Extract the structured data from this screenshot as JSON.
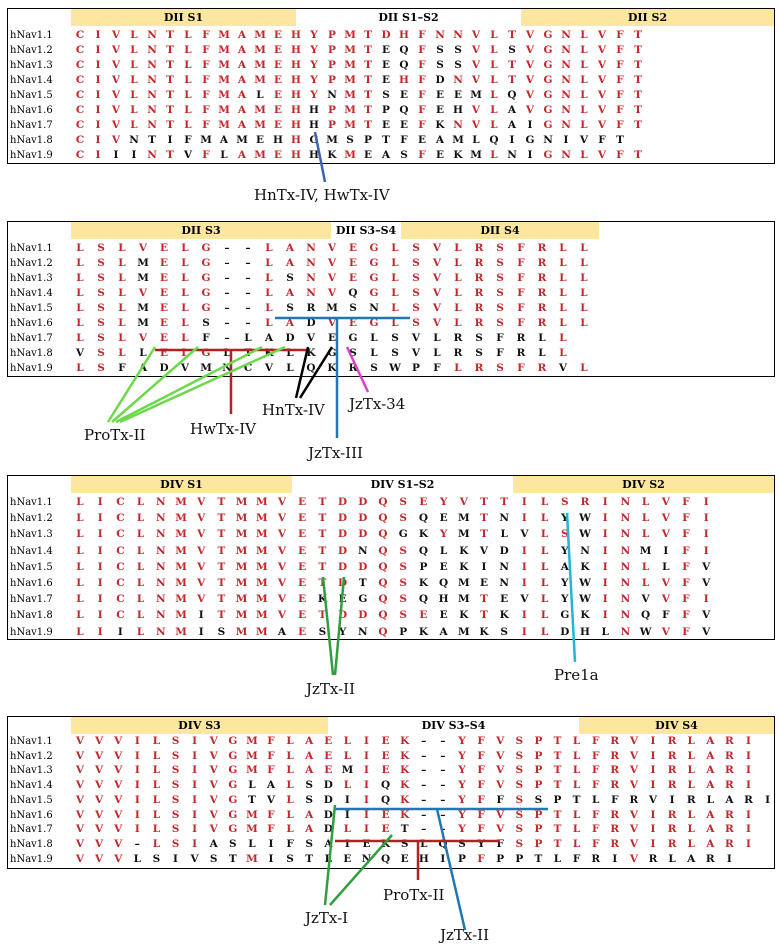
{
  "colors": {
    "conserved": "#c0282c",
    "variable": "#111111",
    "header": "#fce6a0",
    "ProTx-II": "#6cd94a",
    "HwTx-IV": "#b22222",
    "HnTx-IV": "#000000",
    "JzTx-34": "#e040c8",
    "JzTx-III": "#1e78b4",
    "HnTx-IV, HwTx-IV": "#3b64b0",
    "JzTx-II": "#1e78b4",
    "Pre1a": "#22b5d4",
    "JzTx-I": "#2e9e3e"
  },
  "panels": [
    {
      "id": "p1",
      "headers": [
        {
          "label": "DII S1",
          "fill": true,
          "span": [
            0,
            12
          ]
        },
        {
          "label": "DII S1–S2",
          "fill": false,
          "span": [
            12,
            25
          ]
        },
        {
          "label": "DII S2",
          "fill": true,
          "span": [
            25,
            38
          ]
        }
      ],
      "rows": [
        {
          "name": "hNav1.1",
          "seq": "CIVLNTLFMAMEHYPMTDHFNNVLTVGNLVFT"
        },
        {
          "name": "hNav1.2",
          "seq": "CIVLNTLFMAMEHYPMTEQFSSVLSVGNLVFT"
        },
        {
          "name": "hNav1.3",
          "seq": "CIVLNTLFMAMEHYPMTEQFSSVLTVGNLVFT"
        },
        {
          "name": "hNav1.4",
          "seq": "CIVLNTLFMAMEHYPMTEHFDNVLTVGNLVFT"
        },
        {
          "name": "hNav1.5",
          "seq": "CIVLNTLFMALEHYNMTSEFEEMLQVGNLVFT"
        },
        {
          "name": "hNav1.6",
          "seq": "CIVLNTLFMAMEHHPMTPQFEHVLAVGNLVFT"
        },
        {
          "name": "hNav1.7",
          "seq": "CIVLNTLFMAMEHHPMTEEFKNVLAIGNLVFT"
        },
        {
          "name": "hNav1.8",
          "seq": "CIVNTIFMAMEHHGMSPTFEAMLQIGNIVFT"
        },
        {
          "name": "hNav1.9",
          "seq": "CIIINTVFLAMEHHKMEASFEKMLNIGNLVFT"
        }
      ],
      "labels": [
        {
          "text": "HnTx-IV, HwTx-IV",
          "key": "HnTx-IV, HwTx-IV"
        }
      ]
    },
    {
      "id": "p2",
      "headers": [
        {
          "label": "DII S3",
          "fill": true,
          "span": [
            0,
            11
          ]
        },
        {
          "label": "DII S3–S4",
          "fill": false,
          "span": [
            11,
            15
          ]
        },
        {
          "label": "DII S4",
          "fill": true,
          "span": [
            15,
            25
          ]
        }
      ],
      "rows": [
        {
          "name": "hNav1.1",
          "seq": "LSLVELG--LANVEGLSVLRSFRLL"
        },
        {
          "name": "hNav1.2",
          "seq": "LSLMELG--LANVEGLSVLRSFRLL"
        },
        {
          "name": "hNav1.3",
          "seq": "LSLMELG--LSNVEGLSVLRSFRLL"
        },
        {
          "name": "hNav1.4",
          "seq": "LSLVELG--LANVQGLSVLRSFRLL"
        },
        {
          "name": "hNav1.5",
          "seq": "LSLMELG--LSRMSNLSVLRSFRLL"
        },
        {
          "name": "hNav1.6",
          "seq": "LSLMELS--LADVEGLSVLRSFRLL"
        },
        {
          "name": "hNav1.7",
          "seq": "LSLVELF-LADVEGLSVLRSFRLL"
        },
        {
          "name": "hNav1.8",
          "seq": "VSLLELGLTKLKGSLSVLRSFRLL"
        },
        {
          "name": "hNav1.9",
          "seq": "LSFADVMNCVLQKRSWPFLRSFRVL"
        }
      ],
      "labels": [
        {
          "text": "ProTx-II"
        },
        {
          "text": "HwTx-IV"
        },
        {
          "text": "HnTx-IV"
        },
        {
          "text": "JzTx-34"
        },
        {
          "text": "JzTx-III"
        }
      ]
    },
    {
      "id": "p3",
      "headers": [
        {
          "label": "DIV S1",
          "fill": true,
          "span": [
            0,
            12
          ]
        },
        {
          "label": "DIV S1–S2",
          "fill": false,
          "span": [
            12,
            24
          ]
        },
        {
          "label": "DIV S2",
          "fill": true,
          "span": [
            24,
            35
          ]
        }
      ],
      "rows": [
        {
          "name": "hNav1.1",
          "seq": "LICLNMVTMMVETDDQSEYVTTILSRINLVFI"
        },
        {
          "name": "hNav1.2",
          "seq": "LICLNMVTMMVETDDQSQEMTNILYWINLVFI"
        },
        {
          "name": "hNav1.3",
          "seq": "LICLNMVTMMVETDDQGKYMTLVLSWINLVFI"
        },
        {
          "name": "hNav1.4",
          "seq": "LICLNMVTMMVETDNQSQLKVDILYNINMIFI"
        },
        {
          "name": "hNav1.5",
          "seq": "LICLNMVTMMVETDDQSPEKINILAKINLLFV"
        },
        {
          "name": "hNav1.6",
          "seq": "LICLNMVTMMVETDTQSKQMENILYWINLVFV"
        },
        {
          "name": "hNav1.7",
          "seq": "LICLNMVTMMVEKEGQSQHMTEVLYWINVVFI"
        },
        {
          "name": "hNav1.8",
          "seq": "LICLNMITMMVETDDQSEEKTKILGKINQFFV"
        },
        {
          "name": "hNav1.9",
          "seq": "LIILNMISMMAESYNQPKAMKSILDHLNWVFV"
        }
      ],
      "labels": [
        {
          "text": "JzTx-II"
        },
        {
          "text": "Pre1a"
        }
      ]
    },
    {
      "id": "p4",
      "headers": [
        {
          "label": "DIV S3",
          "fill": true,
          "span": [
            0,
            14
          ]
        },
        {
          "label": "DIV S3–S4",
          "fill": false,
          "span": [
            14,
            26
          ]
        },
        {
          "label": "DIV S4",
          "fill": true,
          "span": [
            26,
            36
          ]
        }
      ],
      "rows": [
        {
          "name": "hNav1.1",
          "seq": "VVVILSIVGMFLAELIEK--YFVSPTLFRVIRLARI"
        },
        {
          "name": "hNav1.2",
          "seq": "VVVILSIVGMFLAELIEK--YFVSPTLFRVIRLARI"
        },
        {
          "name": "hNav1.3",
          "seq": "VVVILSIVGMFLAEMIEK--YFVSPTLFRVIRLARI"
        },
        {
          "name": "hNav1.4",
          "seq": "VVVILSIVGLALSDLIQK--YFVSPTLFRVIRLARI"
        },
        {
          "name": "hNav1.5",
          "seq": "VVVILSIVGTVLSDIIQK--YFFSSPTLFRVIRLARI"
        },
        {
          "name": "hNav1.6",
          "seq": "VVVILSIVGMFLADIIEK--YFVSPTLFRVIRLARI"
        },
        {
          "name": "hNav1.7",
          "seq": "VVVILSIVGMFLADLIET--YFVSPTLFRVIRLARI"
        },
        {
          "name": "hNav1.8",
          "seq": "VVV-LSIASLIFSAIEKSLQSYFSPTLFRVIRLARI"
        },
        {
          "name": "hNav1.9",
          "seq": "VVVLSIVSTMISTLENQEHIPFPPTLFRIVRLARI"
        }
      ],
      "labels": [
        {
          "text": "JzTx-I"
        },
        {
          "text": "ProTx-II"
        },
        {
          "text": "JzTx-II"
        }
      ]
    }
  ]
}
